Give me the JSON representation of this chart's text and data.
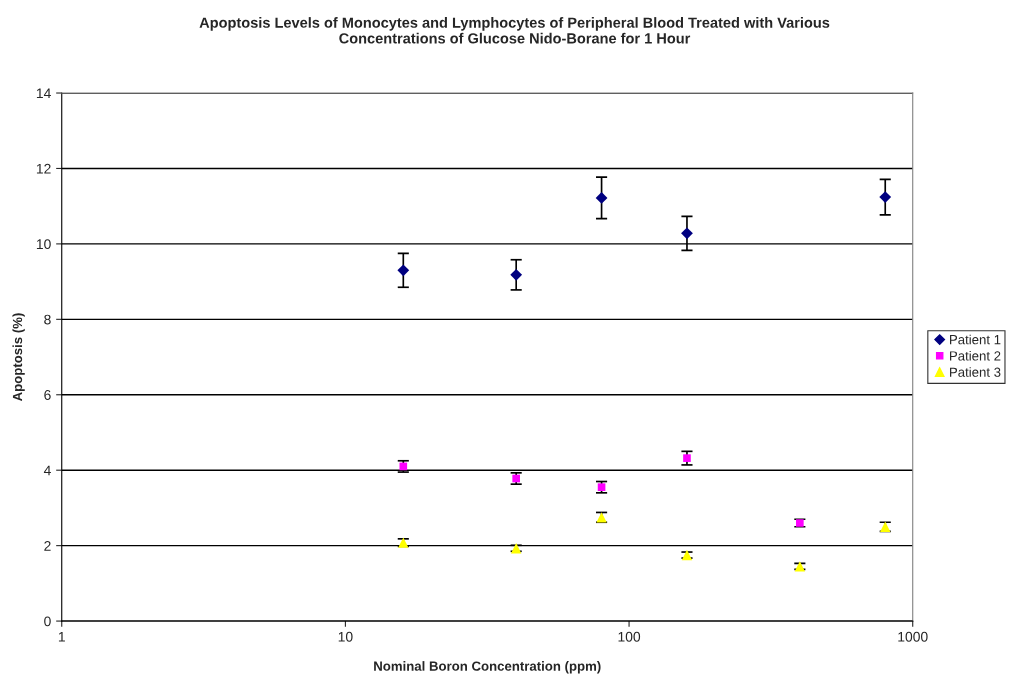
{
  "chart_data": {
    "type": "scatter",
    "title": "Apoptosis Levels of Monocytes and Lymphocytes of Peripheral Blood Treated with Various\nConcentrations of Glucose Nido-Borane for 1 Hour",
    "xlabel": "Nominal Boron Concentration (ppm)",
    "ylabel": "Apoptosis (%)",
    "log": "x",
    "xlim": [
      1,
      1000
    ],
    "xticks": [
      1,
      10,
      100,
      1000
    ],
    "ylim": [
      0,
      14
    ],
    "yticks": [
      0,
      2,
      4,
      6,
      8,
      10,
      12,
      14
    ],
    "grid": "y",
    "legend": "right",
    "series": [
      {
        "name": "Patient 1",
        "color": "#000080",
        "marker": "diamond",
        "x": [
          16,
          40,
          80,
          160,
          800
        ],
        "values": [
          9.3,
          9.18,
          11.22,
          10.28,
          11.24
        ],
        "errors": [
          0.45,
          0.4,
          0.55,
          0.45,
          0.47
        ]
      },
      {
        "name": "Patient 2",
        "color": "#ff00ff",
        "marker": "square",
        "x": [
          16,
          40,
          80,
          160,
          400
        ],
        "values": [
          4.1,
          3.78,
          3.55,
          4.32,
          2.6
        ],
        "errors": [
          0.15,
          0.15,
          0.15,
          0.18,
          0.1
        ]
      },
      {
        "name": "Patient 3",
        "color": "#ffff00",
        "marker": "triangle",
        "x": [
          16,
          40,
          80,
          160,
          400,
          800
        ],
        "values": [
          2.08,
          1.93,
          2.75,
          1.75,
          1.45,
          2.5
        ],
        "errors": [
          0.1,
          0.08,
          0.13,
          0.08,
          0.08,
          0.12
        ]
      }
    ]
  }
}
